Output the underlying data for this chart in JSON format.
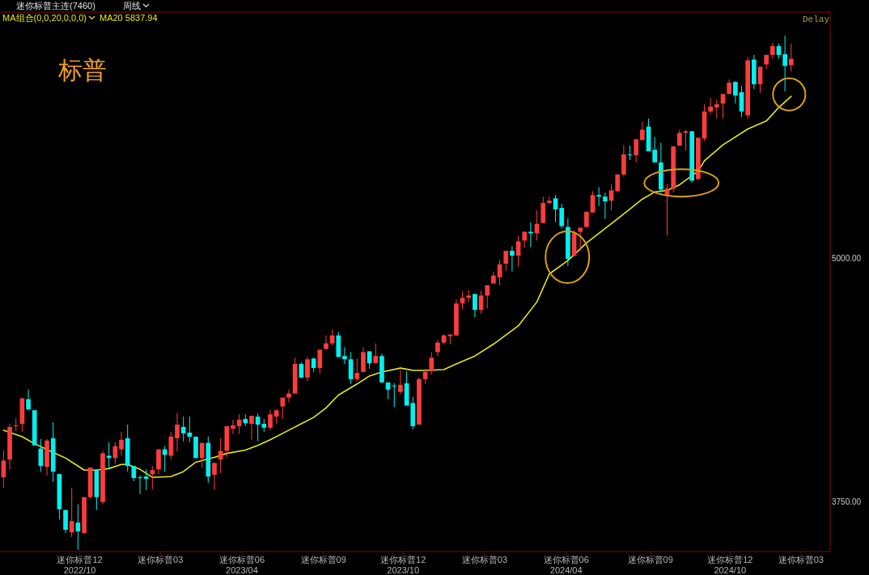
{
  "chart_data": {
    "type": "candlestick",
    "title": "标普",
    "subtitle": "迷你标普主连(7460)",
    "annotations": [
      "周线",
      "MA组合(0,0,20,0,0,0)",
      "MA20 5837.94",
      "Delay"
    ],
    "x": [
      "2022-07-18",
      "2022-07-25",
      "2022-08-01",
      "2022-08-08",
      "2022-08-15",
      "2022-08-22",
      "2022-08-29",
      "2022-09-05",
      "2022-09-12",
      "2022-09-19",
      "2022-09-26",
      "2022-10-03",
      "2022-10-10",
      "2022-10-17",
      "2022-10-24",
      "2022-10-31",
      "2022-11-07",
      "2022-11-14",
      "2022-11-21",
      "2022-11-28",
      "2022-12-05",
      "2022-12-12",
      "2022-12-19",
      "2022-12-26",
      "2023-01-02",
      "2023-01-09",
      "2023-01-16",
      "2023-01-23",
      "2023-01-30",
      "2023-02-06",
      "2023-02-13",
      "2023-02-20",
      "2023-02-27",
      "2023-03-06",
      "2023-03-13",
      "2023-03-20",
      "2023-03-27",
      "2023-04-03",
      "2023-04-10",
      "2023-04-17",
      "2023-04-24",
      "2023-05-01",
      "2023-05-08",
      "2023-05-15",
      "2023-05-22",
      "2023-05-29",
      "2023-06-05",
      "2023-06-12",
      "2023-06-19",
      "2023-06-26",
      "2023-07-03",
      "2023-07-10",
      "2023-07-17",
      "2023-07-24",
      "2023-07-31",
      "2023-08-07",
      "2023-08-14",
      "2023-08-21",
      "2023-08-28",
      "2023-09-04",
      "2023-09-11",
      "2023-09-18",
      "2023-09-25",
      "2023-10-02",
      "2023-10-09",
      "2023-10-16",
      "2023-10-23",
      "2023-10-30",
      "2023-11-06",
      "2023-11-13",
      "2023-11-20",
      "2023-11-27",
      "2023-12-04",
      "2023-12-11",
      "2023-12-18",
      "2023-12-25",
      "2024-01-01",
      "2024-01-08",
      "2024-01-15",
      "2024-01-22",
      "2024-01-29",
      "2024-02-05",
      "2024-02-12",
      "2024-02-19",
      "2024-02-26",
      "2024-03-04",
      "2024-03-11",
      "2024-03-18",
      "2024-03-25",
      "2024-04-01",
      "2024-04-08",
      "2024-04-15",
      "2024-04-22",
      "2024-04-29",
      "2024-05-06",
      "2024-05-13",
      "2024-05-20",
      "2024-05-27",
      "2024-06-03",
      "2024-06-10",
      "2024-06-17",
      "2024-06-24",
      "2024-07-01",
      "2024-07-08",
      "2024-07-15",
      "2024-07-22",
      "2024-07-29",
      "2024-08-05",
      "2024-08-12",
      "2024-08-19",
      "2024-08-26",
      "2024-09-02",
      "2024-09-09",
      "2024-09-16",
      "2024-09-23",
      "2024-09-30",
      "2024-10-07",
      "2024-10-14",
      "2024-10-21",
      "2024-10-28",
      "2024-11-04",
      "2024-11-11",
      "2024-11-18",
      "2024-11-25",
      "2024-12-02",
      "2024-12-09",
      "2024-12-16",
      "2024-12-23"
    ],
    "ohlc": [
      [
        3872,
        4012,
        3819,
        3958
      ],
      [
        3963,
        4147,
        3913,
        4131
      ],
      [
        4135,
        4176,
        4110,
        4139
      ],
      [
        4147,
        4282,
        4106,
        4278
      ],
      [
        4274,
        4323,
        4217,
        4221
      ],
      [
        4217,
        4217,
        4036,
        4036
      ],
      [
        4020,
        4069,
        3901,
        3930
      ],
      [
        3926,
        4069,
        3881,
        4061
      ],
      [
        4073,
        4155,
        3848,
        3901
      ],
      [
        3889,
        3889,
        3655,
        3708
      ],
      [
        3704,
        3704,
        3585,
        3602
      ],
      [
        3589,
        3819,
        3565,
        3647
      ],
      [
        3639,
        3733,
        3499,
        3594
      ],
      [
        3585,
        3770,
        3585,
        3770
      ],
      [
        3770,
        3922,
        3762,
        3922
      ],
      [
        3909,
        3913,
        3704,
        3770
      ],
      [
        3745,
        4008,
        3733,
        3995
      ],
      [
        3983,
        4053,
        3913,
        3971
      ],
      [
        3971,
        4053,
        3942,
        4032
      ],
      [
        4016,
        4106,
        3983,
        4065
      ],
      [
        4073,
        4143,
        3901,
        3930
      ],
      [
        3930,
        3930,
        3852,
        3868
      ],
      [
        3872,
        3881,
        3786,
        3868
      ],
      [
        3876,
        3913,
        3807,
        3864
      ],
      [
        3889,
        3930,
        3811,
        3909
      ],
      [
        3913,
        4016,
        3889,
        4016
      ],
      [
        4016,
        4032,
        3901,
        3987
      ],
      [
        3983,
        4106,
        3963,
        4081
      ],
      [
        4073,
        4204,
        4004,
        4143
      ],
      [
        4131,
        4184,
        4057,
        4098
      ],
      [
        4102,
        4184,
        4053,
        4081
      ],
      [
        4081,
        4081,
        3971,
        3971
      ],
      [
        3971,
        4049,
        3922,
        4049
      ],
      [
        4049,
        4081,
        3844,
        3876
      ],
      [
        3885,
        3946,
        3807,
        3946
      ],
      [
        3963,
        4073,
        3893,
        4008
      ],
      [
        4008,
        4135,
        3975,
        4135
      ],
      [
        4122,
        4168,
        4094,
        4139
      ],
      [
        4135,
        4196,
        4094,
        4168
      ],
      [
        4172,
        4196,
        4135,
        4151
      ],
      [
        4147,
        4188,
        4065,
        4188
      ],
      [
        4184,
        4200,
        4057,
        4143
      ],
      [
        4147,
        4172,
        4106,
        4127
      ],
      [
        4127,
        4221,
        4114,
        4196
      ],
      [
        4184,
        4217,
        4147,
        4217
      ],
      [
        4237,
        4282,
        4172,
        4282
      ],
      [
        4282,
        4323,
        4258,
        4303
      ],
      [
        4303,
        4487,
        4303,
        4455
      ],
      [
        4455,
        4463,
        4381,
        4385
      ],
      [
        4385,
        4491,
        4364,
        4479
      ],
      [
        4483,
        4487,
        4414,
        4434
      ],
      [
        4434,
        4528,
        4405,
        4528
      ],
      [
        4532,
        4602,
        4528,
        4561
      ],
      [
        4561,
        4631,
        4549,
        4602
      ],
      [
        4602,
        4619,
        4491,
        4491
      ],
      [
        4496,
        4541,
        4455,
        4479
      ],
      [
        4479,
        4516,
        4352,
        4377
      ],
      [
        4377,
        4483,
        4364,
        4409
      ],
      [
        4414,
        4541,
        4414,
        4516
      ],
      [
        4520,
        4520,
        4430,
        4459
      ],
      [
        4459,
        4561,
        4459,
        4496
      ],
      [
        4496,
        4508,
        4360,
        4360
      ],
      [
        4360,
        4360,
        4274,
        4323
      ],
      [
        4344,
        4356,
        4233,
        4340
      ],
      [
        4311,
        4422,
        4299,
        4348
      ],
      [
        4356,
        4418,
        4241,
        4241
      ],
      [
        4254,
        4286,
        4118,
        4135
      ],
      [
        4143,
        4385,
        4143,
        4377
      ],
      [
        4377,
        4430,
        4352,
        4414
      ],
      [
        4418,
        4516,
        4401,
        4487
      ],
      [
        4516,
        4578,
        4496,
        4565
      ],
      [
        4565,
        4606,
        4557,
        4602
      ],
      [
        4598,
        4610,
        4557,
        4606
      ],
      [
        4602,
        4787,
        4598,
        4766
      ],
      [
        4766,
        4828,
        4737,
        4795
      ],
      [
        4795,
        4836,
        4774,
        4807
      ],
      [
        4815,
        4815,
        4696,
        4733
      ],
      [
        4733,
        4832,
        4713,
        4807
      ],
      [
        4807,
        4860,
        4742,
        4860
      ],
      [
        4869,
        4930,
        4869,
        4910
      ],
      [
        4901,
        4992,
        4860,
        4967
      ],
      [
        4971,
        5037,
        4934,
        5037
      ],
      [
        5037,
        5061,
        4930,
        5012
      ],
      [
        5012,
        5115,
        4955,
        5086
      ],
      [
        5090,
        5135,
        5053,
        5135
      ],
      [
        5135,
        5184,
        5057,
        5127
      ],
      [
        5127,
        5246,
        5090,
        5176
      ],
      [
        5180,
        5316,
        5180,
        5283
      ],
      [
        5283,
        5316,
        5279,
        5295
      ],
      [
        5307,
        5324,
        5184,
        5250
      ],
      [
        5258,
        5279,
        5152,
        5164
      ],
      [
        5160,
        5205,
        4959,
        4996
      ],
      [
        5012,
        5143,
        5008,
        5127
      ],
      [
        5135,
        5156,
        5037,
        5156
      ],
      [
        5160,
        5238,
        5156,
        5238
      ],
      [
        5234,
        5344,
        5234,
        5324
      ],
      [
        5324,
        5365,
        5266,
        5316
      ],
      [
        5316,
        5336,
        5201,
        5291
      ],
      [
        5295,
        5381,
        5246,
        5348
      ],
      [
        5344,
        5430,
        5336,
        5430
      ],
      [
        5430,
        5582,
        5418,
        5533
      ],
      [
        5533,
        5578,
        5504,
        5529
      ],
      [
        5529,
        5611,
        5492,
        5611
      ],
      [
        5607,
        5701,
        5607,
        5660
      ],
      [
        5676,
        5717,
        5549,
        5549
      ],
      [
        5557,
        5623,
        5492,
        5492
      ],
      [
        5492,
        5594,
        5336,
        5352
      ],
      [
        5324,
        5381,
        5115,
        5357
      ],
      [
        5357,
        5574,
        5336,
        5574
      ],
      [
        5578,
        5660,
        5578,
        5644
      ],
      [
        5644,
        5660,
        5553,
        5652
      ],
      [
        5652,
        5652,
        5389,
        5398
      ],
      [
        5406,
        5619,
        5406,
        5619
      ],
      [
        5615,
        5791,
        5603,
        5754
      ],
      [
        5754,
        5824,
        5738,
        5779
      ],
      [
        5775,
        5816,
        5717,
        5791
      ],
      [
        5795,
        5844,
        5717,
        5844
      ],
      [
        5844,
        5918,
        5844,
        5902
      ],
      [
        5906,
        5906,
        5795,
        5836
      ],
      [
        5853,
        5885,
        5726,
        5754
      ],
      [
        5734,
        6033,
        5717,
        6017
      ],
      [
        6021,
        6045,
        5869,
        5894
      ],
      [
        5894,
        5984,
        5849,
        5984
      ],
      [
        5996,
        6045,
        5972,
        6045
      ],
      [
        6045,
        6107,
        6025,
        6090
      ],
      [
        6090,
        6103,
        6025,
        6045
      ],
      [
        6049,
        6144,
        5857,
        5988
      ],
      [
        5992,
        6103,
        5959,
        6025
      ]
    ],
    "colors": [
      "#ff3c3c",
      "#ff3c3c",
      "#ff3c3c",
      "#ff3c3c",
      "#00f0f0",
      "#00f0f0",
      "#00f0f0",
      "#ff3c3c",
      "#00f0f0",
      "#00f0f0",
      "#00f0f0",
      "#ff3c3c",
      "#00f0f0",
      "#ff3c3c",
      "#ff3c3c",
      "#00f0f0",
      "#ff3c3c",
      "#00f0f0",
      "#ff3c3c",
      "#ff3c3c",
      "#00f0f0",
      "#00f0f0",
      "#00f0f0",
      "#00f0f0",
      "#ff3c3c",
      "#ff3c3c",
      "#00f0f0",
      "#ff3c3c",
      "#ff3c3c",
      "#00f0f0",
      "#00f0f0",
      "#00f0f0",
      "#ff3c3c",
      "#00f0f0",
      "#ff3c3c",
      "#ff3c3c",
      "#ff3c3c",
      "#ff3c3c",
      "#ff3c3c",
      "#00f0f0",
      "#ff3c3c",
      "#00f0f0",
      "#00f0f0",
      "#ff3c3c",
      "#ff3c3c",
      "#ff3c3c",
      "#ff3c3c",
      "#ff3c3c",
      "#00f0f0",
      "#ff3c3c",
      "#00f0f0",
      "#ff3c3c",
      "#ff3c3c",
      "#ff3c3c",
      "#00f0f0",
      "#00f0f0",
      "#00f0f0",
      "#ff3c3c",
      "#ff3c3c",
      "#00f0f0",
      "#ff3c3c",
      "#00f0f0",
      "#00f0f0",
      "#00f0f0",
      "#ff3c3c",
      "#00f0f0",
      "#00f0f0",
      "#ff3c3c",
      "#ff3c3c",
      "#ff3c3c",
      "#ff3c3c",
      "#ff3c3c",
      "#ff3c3c",
      "#ff3c3c",
      "#ff3c3c",
      "#ff3c3c",
      "#00f0f0",
      "#ff3c3c",
      "#ff3c3c",
      "#ff3c3c",
      "#ff3c3c",
      "#ff3c3c",
      "#00f0f0",
      "#ff3c3c",
      "#ff3c3c",
      "#00f0f0",
      "#ff3c3c",
      "#ff3c3c",
      "#ff3c3c",
      "#00f0f0",
      "#00f0f0",
      "#00f0f0",
      "#ff3c3c",
      "#ff3c3c",
      "#ff3c3c",
      "#ff3c3c",
      "#00f0f0",
      "#00f0f0",
      "#ff3c3c",
      "#ff3c3c",
      "#ff3c3c",
      "#00f0f0",
      "#ff3c3c",
      "#ff3c3c",
      "#00f0f0",
      "#00f0f0",
      "#00f0f0",
      "#ff3c3c",
      "#ff3c3c",
      "#ff3c3c",
      "#ff3c3c",
      "#00f0f0",
      "#ff3c3c",
      "#ff3c3c",
      "#ff3c3c",
      "#ff3c3c",
      "#ff3c3c",
      "#ff3c3c",
      "#00f0f0",
      "#00f0f0",
      "#ff3c3c",
      "#00f0f0",
      "#ff3c3c",
      "#ff3c3c",
      "#ff3c3c",
      "#00f0f0",
      "#00f0f0",
      "#ff3c3c"
    ],
    "series": [
      {
        "type": "line",
        "color": "#e6e619",
        "x": [
          "2022-07-18",
          "2022-08-08",
          "2022-08-22",
          "2022-09-12",
          "2022-09-26",
          "2022-10-10",
          "2022-10-17",
          "2022-10-31",
          "2022-11-14",
          "2022-11-28",
          "2022-12-05",
          "2022-12-19",
          "2023-01-02",
          "2023-01-23",
          "2023-02-06",
          "2023-02-20",
          "2023-03-13",
          "2023-03-27",
          "2023-04-17",
          "2023-05-01",
          "2023-05-15",
          "2023-05-29",
          "2023-06-19",
          "2023-07-03",
          "2023-07-17",
          "2023-07-31",
          "2023-08-21",
          "2023-09-04",
          "2023-09-18",
          "2023-10-09",
          "2023-10-23",
          "2023-11-06",
          "2023-11-27",
          "2023-12-11",
          "2024-01-01",
          "2024-01-22",
          "2024-02-19",
          "2024-03-11",
          "2024-03-25",
          "2024-04-15",
          "2024-05-06",
          "2024-06-10",
          "2024-07-08",
          "2024-07-22",
          "2024-08-05",
          "2024-08-19",
          "2024-09-09",
          "2024-09-16",
          "2024-10-07",
          "2024-11-04",
          "2024-11-25",
          "2024-12-09",
          "2024-12-23"
        ],
        "values": [
          4114,
          4081,
          4045,
          4000,
          3971,
          3930,
          3909,
          3909,
          3917,
          3938,
          3938,
          3913,
          3872,
          3876,
          3901,
          3950,
          3975,
          3995,
          4012,
          4036,
          4065,
          4098,
          4147,
          4180,
          4229,
          4295,
          4352,
          4393,
          4414,
          4434,
          4422,
          4422,
          4426,
          4455,
          4496,
          4557,
          4651,
          4774,
          4918,
          4987,
          5078,
          5201,
          5303,
          5340,
          5348,
          5377,
          5447,
          5500,
          5582,
          5664,
          5705,
          5775,
          5832
        ]
      }
    ],
    "xlim": [
      "2022-07-14",
      "2025-02-05"
    ],
    "xticks": [
      {
        "value": "2022-10-12",
        "label": "迷你标普12\n2022/10"
      },
      {
        "value": "2023-01-11",
        "label": "迷你标普03"
      },
      {
        "value": "2023-04-13",
        "label": "迷你标普06\n2023/04"
      },
      {
        "value": "2023-07-14",
        "label": "迷你标普09"
      },
      {
        "value": "2023-10-12",
        "label": "迷你标普12\n2023/10"
      },
      {
        "value": "2024-01-12",
        "label": "迷你标普03"
      },
      {
        "value": "2024-04-13",
        "label": "迷你标普06\n2024/04"
      },
      {
        "value": "2024-07-17",
        "label": "迷你标普09"
      },
      {
        "value": "2024-10-15",
        "label": "迷你标普12\n2024/10"
      },
      {
        "value": "2025-01-03",
        "label": "迷你标普03"
      }
    ],
    "ylim": [
      3490,
      6265
    ],
    "yticks": [
      {
        "value": 3750,
        "label": "3750.00"
      },
      {
        "value": 5000,
        "label": "5000.00"
      }
    ]
  }
}
